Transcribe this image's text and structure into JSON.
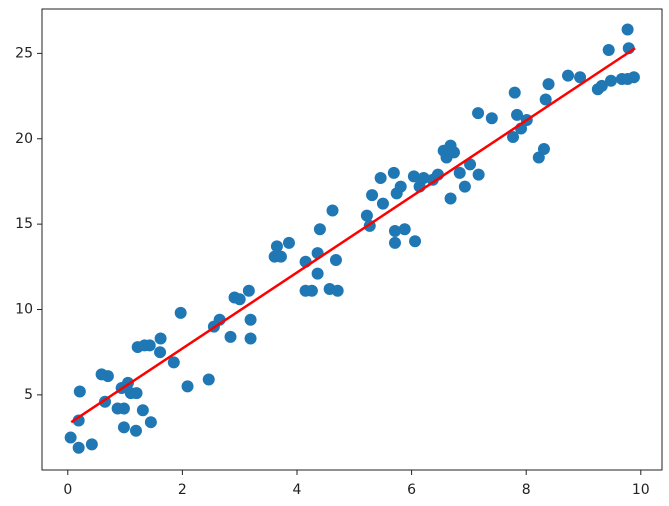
{
  "chart_data": {
    "type": "scatter",
    "x": [
      0.05,
      0.19,
      0.21,
      0.19,
      0.42,
      0.59,
      0.7,
      0.65,
      0.87,
      0.98,
      0.94,
      1.05,
      0.98,
      1.1,
      1.2,
      1.19,
      1.31,
      1.22,
      1.34,
      1.43,
      1.45,
      1.62,
      1.61,
      1.85,
      1.97,
      2.09,
      2.46,
      2.55,
      2.65,
      2.84,
      2.91,
      3.0,
      3.16,
      3.19,
      3.19,
      3.61,
      3.65,
      3.72,
      3.86,
      4.15,
      4.15,
      4.26,
      4.36,
      4.36,
      4.4,
      4.57,
      4.62,
      4.68,
      4.71,
      5.22,
      5.27,
      5.31,
      5.46,
      5.5,
      5.69,
      5.71,
      5.71,
      5.74,
      5.81,
      5.88,
      6.04,
      6.06,
      6.14,
      6.21,
      6.37,
      6.46,
      6.56,
      6.61,
      6.68,
      6.68,
      6.74,
      6.84,
      6.93,
      7.02,
      7.17,
      7.16,
      7.4,
      7.77,
      7.8,
      7.84,
      7.91,
      8.01,
      8.22,
      8.31,
      8.34,
      8.39,
      8.73,
      8.94,
      9.25,
      9.32,
      9.44,
      9.48,
      9.67,
      9.77,
      9.77,
      9.79,
      9.88
    ],
    "values": [
      2.5,
      1.9,
      5.2,
      3.5,
      2.1,
      6.2,
      6.1,
      4.6,
      4.2,
      4.2,
      5.4,
      5.7,
      3.1,
      5.1,
      5.1,
      2.9,
      4.1,
      7.8,
      7.9,
      7.9,
      3.4,
      8.3,
      7.5,
      6.9,
      9.8,
      5.5,
      5.9,
      9.0,
      9.4,
      8.4,
      10.7,
      10.6,
      11.1,
      8.3,
      9.4,
      13.1,
      13.7,
      13.1,
      13.9,
      12.8,
      11.1,
      11.1,
      13.3,
      12.1,
      14.7,
      11.2,
      15.8,
      12.9,
      11.1,
      15.5,
      14.9,
      16.7,
      17.7,
      16.2,
      18.0,
      14.6,
      13.9,
      16.8,
      17.2,
      14.7,
      17.8,
      14.0,
      17.2,
      17.7,
      17.6,
      17.9,
      19.3,
      18.9,
      19.6,
      16.5,
      19.2,
      18.0,
      17.2,
      18.5,
      17.9,
      21.5,
      21.2,
      20.1,
      22.7,
      21.4,
      20.6,
      21.1,
      18.9,
      19.4,
      22.3,
      23.2,
      23.7,
      23.6,
      22.9,
      23.1,
      25.2,
      23.4,
      23.5,
      23.5,
      26.4,
      25.3,
      23.6
    ],
    "color": "#1f77b4",
    "fit": {
      "x": [
        0.06,
        9.9
      ],
      "values": [
        3.4,
        25.3
      ],
      "color": "#ff0000"
    },
    "xlim": [
      -0.45,
      10.37
    ],
    "ylim": [
      0.6,
      27.6
    ],
    "xticks": [
      0,
      2,
      4,
      6,
      8,
      10
    ],
    "yticks": [
      5,
      10,
      15,
      20,
      25
    ],
    "grid": false
  }
}
